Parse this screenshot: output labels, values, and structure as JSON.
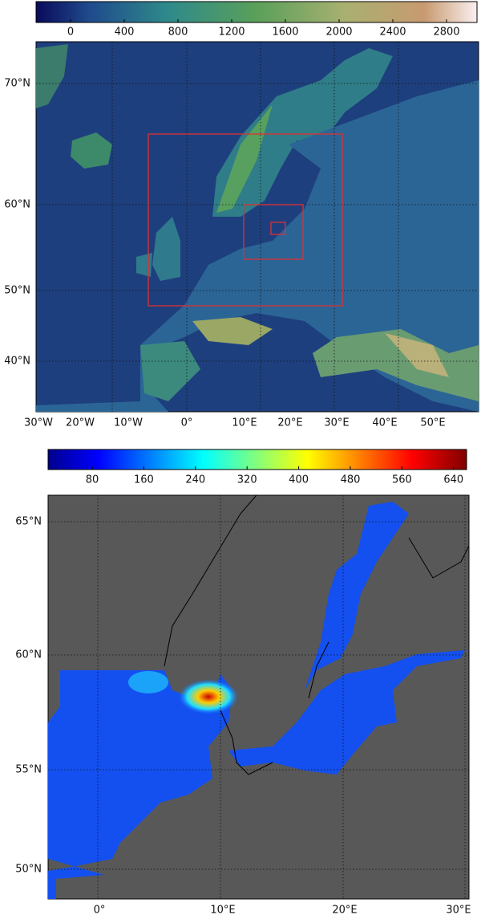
{
  "panel_1": {
    "colorbar_ticks": [
      0,
      400,
      800,
      1200,
      1600,
      2000,
      2400,
      2800
    ],
    "lat_labels": [
      "70°N",
      "60°N",
      "50°N",
      "40°N"
    ],
    "lon_labels": [
      "30°W",
      "20°W",
      "10°W",
      "0°",
      "10°E",
      "20°E",
      "30°E",
      "40°E",
      "50°E"
    ]
  },
  "panel_2": {
    "colorbar_ticks": [
      80,
      160,
      240,
      320,
      400,
      480,
      560,
      640
    ],
    "lat_labels": [
      "65°N",
      "60°N",
      "55°N",
      "50°N"
    ],
    "lon_labels": [
      "0°",
      "10°E",
      "20°E",
      "30°E"
    ]
  }
}
